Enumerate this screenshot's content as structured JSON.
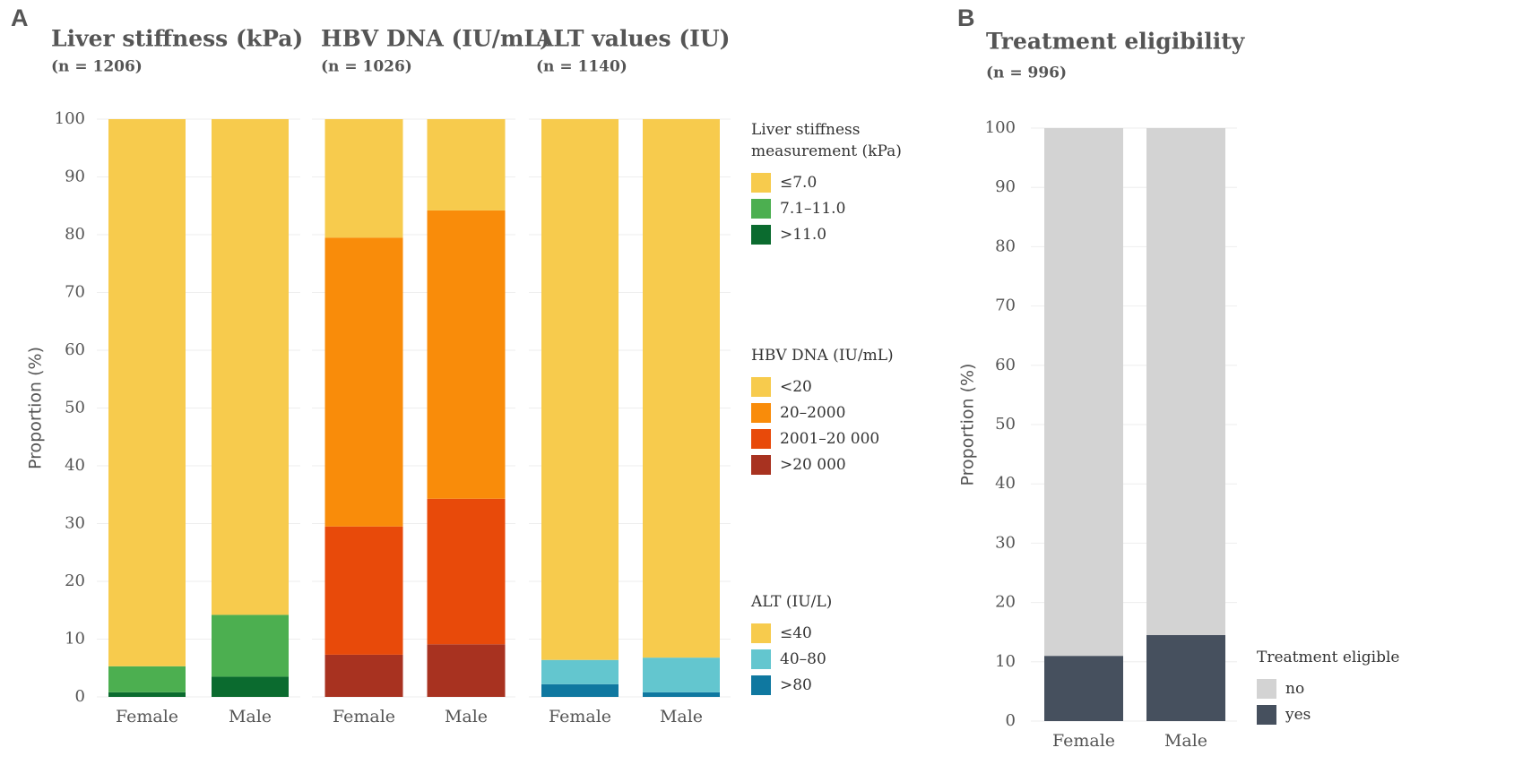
{
  "chart_data": [
    {
      "type": "stacked_bar",
      "panel_label": "A",
      "ylabel": "Proportion (%)",
      "title": "Liver stiffness (kPa)",
      "subtitle": "(n = 1206)",
      "title_color": "#1e7a2a",
      "categories": [
        "Female",
        "Male"
      ],
      "legend_title": "Liver stiffness measurement (kPa)",
      "series": [
        {
          "name": "≤7.0",
          "color": "#f7cb4d",
          "values": [
            94.7,
            85.8
          ]
        },
        {
          "name": "7.1–11.0",
          "color": "#4caf50",
          "values": [
            4.5,
            10.7
          ]
        },
        {
          "name": ">11.0",
          "color": "#0b6b2f",
          "values": [
            0.8,
            3.5
          ]
        }
      ],
      "ylim": [
        0,
        100
      ],
      "yticks": [
        0,
        10,
        20,
        30,
        40,
        50,
        60,
        70,
        80,
        90,
        100
      ],
      "grid": true
    },
    {
      "type": "stacked_bar",
      "title": "HBV DNA (IU/mL)",
      "subtitle": "(n = 1026)",
      "title_color": "#a31d1d",
      "categories": [
        "Female",
        "Male"
      ],
      "legend_title": "HBV DNA (IU/mL)",
      "series": [
        {
          "name": "<20",
          "color": "#f7cb4d",
          "values": [
            20.5,
            15.8
          ]
        },
        {
          "name": "20–2000",
          "color": "#f98c0a",
          "values": [
            50.0,
            49.9
          ]
        },
        {
          "name": "2001–20 000",
          "color": "#e84a0a",
          "values": [
            22.2,
            25.2
          ]
        },
        {
          "name": ">20 000",
          "color": "#a83220",
          "values": [
            7.3,
            9.1
          ]
        }
      ],
      "ylim": [
        0,
        100
      ],
      "grid": true
    },
    {
      "type": "stacked_bar",
      "title": "ALT values (IU)",
      "subtitle": "(n = 1140)",
      "title_color": "#1a7aa8",
      "categories": [
        "Female",
        "Male"
      ],
      "legend_title": "ALT (IU/L)",
      "series": [
        {
          "name": "≤40",
          "color": "#f7cb4d",
          "values": [
            93.6,
            93.2
          ]
        },
        {
          "name": "40–80",
          "color": "#63c6cf",
          "values": [
            4.2,
            6.0
          ]
        },
        {
          "name": ">80",
          "color": "#0f78a0",
          "values": [
            2.2,
            0.8
          ]
        }
      ],
      "ylim": [
        0,
        100
      ],
      "grid": true
    },
    {
      "type": "stacked_bar",
      "panel_label": "B",
      "ylabel": "Proportion (%)",
      "title": "Treatment eligibility",
      "subtitle": "(n = 996)",
      "title_color": "#111111",
      "categories": [
        "Female",
        "Male"
      ],
      "legend_title": "Treatment eligible",
      "series": [
        {
          "name": "no",
          "color": "#d3d3d3",
          "values": [
            89,
            85.5
          ]
        },
        {
          "name": "yes",
          "color": "#46505e",
          "values": [
            11,
            14.5
          ]
        }
      ],
      "ylim": [
        0,
        100
      ],
      "yticks": [
        0,
        10,
        20,
        30,
        40,
        50,
        60,
        70,
        80,
        90,
        100
      ],
      "grid": true
    }
  ]
}
